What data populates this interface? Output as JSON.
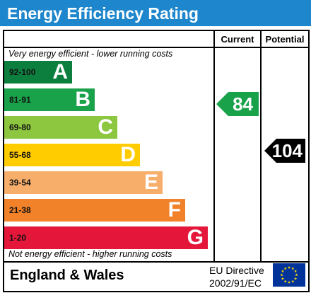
{
  "title": "Energy Efficiency Rating",
  "columns": {
    "current": "Current",
    "potential": "Potential"
  },
  "top_note": "Very energy efficient - lower running costs",
  "bottom_note": "Not energy efficient - higher running costs",
  "bands": [
    {
      "range": "92-100",
      "letter": "A",
      "color": "#0c7f3f"
    },
    {
      "range": "81-91",
      "letter": "B",
      "color": "#1aa24b"
    },
    {
      "range": "69-80",
      "letter": "C",
      "color": "#8dc63f"
    },
    {
      "range": "55-68",
      "letter": "D",
      "color": "#ffcc00"
    },
    {
      "range": "39-54",
      "letter": "E",
      "color": "#f7ae6b"
    },
    {
      "range": "21-38",
      "letter": "F",
      "color": "#f2822a"
    },
    {
      "range": "1-20",
      "letter": "G",
      "color": "#e4173a"
    }
  ],
  "current_rating": {
    "value": "84",
    "color": "#1aa24b"
  },
  "potential_rating": {
    "value": "104",
    "color": "#000000"
  },
  "footer": {
    "region": "England & Wales",
    "directive_line1": "EU Directive",
    "directive_line2": "2002/91/EC"
  },
  "colors": {
    "title_bar": "#1e86cc",
    "eu_flag": "#003399",
    "eu_stars": "#ffdd00"
  }
}
